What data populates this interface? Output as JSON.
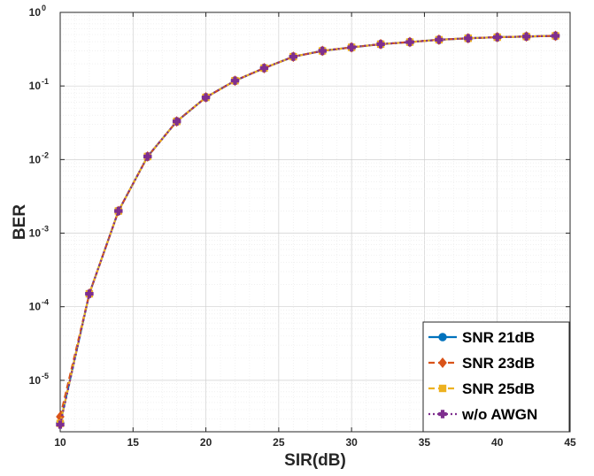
{
  "chart_data": {
    "type": "line",
    "title": "",
    "xlabel": "SIR(dB)",
    "ylabel": "BER",
    "xlim": [
      10,
      45
    ],
    "ylim": [
      2e-06,
      1
    ],
    "yscale": "log",
    "grid": true,
    "minor_grid": true,
    "legend_position": "bottom-right",
    "x_ticks": [
      10,
      15,
      20,
      25,
      30,
      35,
      40,
      45
    ],
    "y_ticks": [
      {
        "value": 1e-05,
        "base": "10",
        "exp": "-5"
      },
      {
        "value": 0.0001,
        "base": "10",
        "exp": "-4"
      },
      {
        "value": 0.001,
        "base": "10",
        "exp": "-3"
      },
      {
        "value": 0.01,
        "base": "10",
        "exp": "-2"
      },
      {
        "value": 0.1,
        "base": "10",
        "exp": "-1"
      },
      {
        "value": 1,
        "base": "10",
        "exp": "0"
      }
    ],
    "x": [
      10,
      12,
      14,
      16,
      18,
      20,
      22,
      24,
      26,
      28,
      30,
      32,
      34,
      36,
      38,
      40,
      42,
      44
    ],
    "series": [
      {
        "name": "SNR 21dB",
        "color": "#0072BD",
        "marker": "circle",
        "dash": "",
        "values": [
          2.6e-06,
          0.00015,
          0.002,
          0.011,
          0.033,
          0.07,
          0.118,
          0.175,
          0.25,
          0.3,
          0.335,
          0.37,
          0.395,
          0.425,
          0.445,
          0.46,
          0.47,
          0.48
        ]
      },
      {
        "name": "SNR 23dB",
        "color": "#D95319",
        "marker": "diamond",
        "dash": "7,4",
        "values": [
          3.2e-06,
          0.00015,
          0.002,
          0.011,
          0.033,
          0.07,
          0.118,
          0.175,
          0.25,
          0.3,
          0.335,
          0.37,
          0.395,
          0.425,
          0.445,
          0.46,
          0.47,
          0.48
        ]
      },
      {
        "name": "SNR 25dB",
        "color": "#EDB120",
        "marker": "square",
        "dash": "7,4",
        "values": [
          2.6e-06,
          0.00015,
          0.002,
          0.011,
          0.033,
          0.07,
          0.118,
          0.175,
          0.25,
          0.3,
          0.335,
          0.37,
          0.395,
          0.425,
          0.445,
          0.46,
          0.47,
          0.48
        ]
      },
      {
        "name": "w/o AWGN",
        "color": "#7E2F8E",
        "marker": "cross",
        "dash": "2,3",
        "values": [
          2.5e-06,
          0.00015,
          0.002,
          0.011,
          0.033,
          0.07,
          0.118,
          0.175,
          0.25,
          0.3,
          0.335,
          0.37,
          0.395,
          0.425,
          0.445,
          0.46,
          0.47,
          0.48
        ]
      }
    ]
  }
}
